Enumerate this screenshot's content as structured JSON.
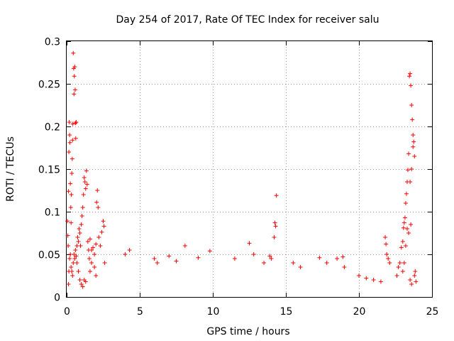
{
  "chart_data": {
    "type": "scatter",
    "title": "Day 254 of 2017, Rate Of TEC Index for receiver salu",
    "xlabel": "GPS time / hours",
    "ylabel": "ROTI / TECUs",
    "xlim": [
      0,
      25
    ],
    "ylim": [
      0,
      0.3
    ],
    "xticks": [
      "0",
      "5",
      "10",
      "15",
      "20",
      "25"
    ],
    "yticks": [
      "0",
      "0.05",
      "0.1",
      "0.15",
      "0.2",
      "0.25",
      "0.3"
    ],
    "grid": true,
    "marker": "+",
    "color": "#ff0000",
    "series": [
      {
        "name": "ROTI",
        "points": [
          [
            0.05,
            0.089
          ],
          [
            0.08,
            0.072
          ],
          [
            0.1,
            0.06
          ],
          [
            0.12,
            0.124
          ],
          [
            0.15,
            0.17
          ],
          [
            0.18,
            0.205
          ],
          [
            0.2,
            0.19
          ],
          [
            0.22,
            0.181
          ],
          [
            0.25,
            0.133
          ],
          [
            0.28,
            0.105
          ],
          [
            0.3,
            0.087
          ],
          [
            0.32,
            0.12
          ],
          [
            0.35,
            0.145
          ],
          [
            0.38,
            0.162
          ],
          [
            0.4,
            0.184
          ],
          [
            0.42,
            0.203
          ],
          [
            0.45,
            0.286
          ],
          [
            0.48,
            0.268
          ],
          [
            0.5,
            0.238
          ],
          [
            0.52,
            0.259
          ],
          [
            0.55,
            0.27
          ],
          [
            0.58,
            0.243
          ],
          [
            0.6,
            0.204
          ],
          [
            0.62,
            0.186
          ],
          [
            0.65,
            0.205
          ],
          [
            0.12,
            0.015
          ],
          [
            0.15,
            0.03
          ],
          [
            0.2,
            0.045
          ],
          [
            0.25,
            0.05
          ],
          [
            0.3,
            0.035
          ],
          [
            0.35,
            0.03
          ],
          [
            0.4,
            0.025
          ],
          [
            0.45,
            0.04
          ],
          [
            0.5,
            0.05
          ],
          [
            0.55,
            0.045
          ],
          [
            0.6,
            0.055
          ],
          [
            0.65,
            0.048
          ],
          [
            0.7,
            0.06
          ],
          [
            0.75,
            0.07
          ],
          [
            0.8,
            0.065
          ],
          [
            0.85,
            0.08
          ],
          [
            0.9,
            0.075
          ],
          [
            0.95,
            0.06
          ],
          [
            1.0,
            0.085
          ],
          [
            1.05,
            0.095
          ],
          [
            1.1,
            0.105
          ],
          [
            1.15,
            0.12
          ],
          [
            1.2,
            0.14
          ],
          [
            1.25,
            0.135
          ],
          [
            1.3,
            0.127
          ],
          [
            1.35,
            0.148
          ],
          [
            1.4,
            0.132
          ],
          [
            1.45,
            0.065
          ],
          [
            1.5,
            0.055
          ],
          [
            1.55,
            0.045
          ],
          [
            1.6,
            0.03
          ],
          [
            1.7,
            0.04
          ],
          [
            1.8,
            0.058
          ],
          [
            1.9,
            0.05
          ],
          [
            2.0,
            0.062
          ],
          [
            2.05,
            0.111
          ],
          [
            2.1,
            0.125
          ],
          [
            2.15,
            0.105
          ],
          [
            2.2,
            0.07
          ],
          [
            2.3,
            0.06
          ],
          [
            2.4,
            0.076
          ],
          [
            2.5,
            0.089
          ],
          [
            2.55,
            0.083
          ],
          [
            2.6,
            0.04
          ],
          [
            0.9,
            0.02
          ],
          [
            1.0,
            0.015
          ],
          [
            1.1,
            0.012
          ],
          [
            1.2,
            0.02
          ],
          [
            1.3,
            0.018
          ],
          [
            0.7,
            0.04
          ],
          [
            0.8,
            0.03
          ],
          [
            1.6,
            0.068
          ],
          [
            1.7,
            0.055
          ],
          [
            1.9,
            0.035
          ],
          [
            2.0,
            0.025
          ],
          [
            14.35,
            0.119
          ],
          [
            14.25,
            0.087
          ],
          [
            14.3,
            0.083
          ],
          [
            14.2,
            0.07
          ],
          [
            12.5,
            0.063
          ],
          [
            8.1,
            0.06
          ],
          [
            9.8,
            0.054
          ],
          [
            18.9,
            0.047
          ],
          [
            13.9,
            0.048
          ],
          [
            14.0,
            0.045
          ],
          [
            21.8,
            0.07
          ],
          [
            21.85,
            0.062
          ],
          [
            21.9,
            0.05
          ],
          [
            22.0,
            0.045
          ],
          [
            22.1,
            0.04
          ],
          [
            22.6,
            0.025
          ],
          [
            22.7,
            0.035
          ],
          [
            22.8,
            0.04
          ],
          [
            22.9,
            0.058
          ],
          [
            23.0,
            0.065
          ],
          [
            23.05,
            0.081
          ],
          [
            23.1,
            0.087
          ],
          [
            23.15,
            0.093
          ],
          [
            23.2,
            0.11
          ],
          [
            23.25,
            0.121
          ],
          [
            23.3,
            0.135
          ],
          [
            23.35,
            0.149
          ],
          [
            23.4,
            0.168
          ],
          [
            23.45,
            0.259
          ],
          [
            23.5,
            0.262
          ],
          [
            23.55,
            0.248
          ],
          [
            23.6,
            0.225
          ],
          [
            23.65,
            0.208
          ],
          [
            23.7,
            0.19
          ],
          [
            23.75,
            0.182
          ],
          [
            23.8,
            0.165
          ],
          [
            23.7,
            0.176
          ],
          [
            23.6,
            0.15
          ],
          [
            23.5,
            0.135
          ],
          [
            23.55,
            0.085
          ],
          [
            23.4,
            0.075
          ],
          [
            23.3,
            0.08
          ],
          [
            23.2,
            0.06
          ],
          [
            23.1,
            0.04
          ],
          [
            23.0,
            0.03
          ],
          [
            23.5,
            0.02
          ],
          [
            23.6,
            0.015
          ],
          [
            23.8,
            0.025
          ],
          [
            23.9,
            0.018
          ],
          [
            23.85,
            0.03
          ],
          [
            4.0,
            0.05
          ],
          [
            4.3,
            0.055
          ],
          [
            6.0,
            0.045
          ],
          [
            6.2,
            0.04
          ],
          [
            7.0,
            0.048
          ],
          [
            7.5,
            0.042
          ],
          [
            9.0,
            0.046
          ],
          [
            11.5,
            0.045
          ],
          [
            12.8,
            0.05
          ],
          [
            13.5,
            0.04
          ],
          [
            15.5,
            0.04
          ],
          [
            16.0,
            0.035
          ],
          [
            17.3,
            0.046
          ],
          [
            17.8,
            0.04
          ],
          [
            18.5,
            0.045
          ],
          [
            19.0,
            0.035
          ],
          [
            20.0,
            0.025
          ],
          [
            20.5,
            0.022
          ],
          [
            21.0,
            0.02
          ],
          [
            21.5,
            0.018
          ]
        ]
      }
    ]
  }
}
